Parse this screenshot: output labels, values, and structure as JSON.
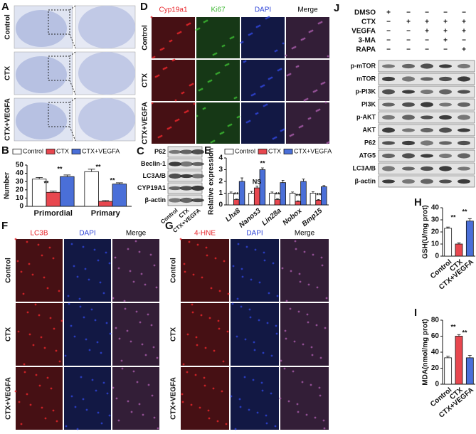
{
  "panels": {
    "A": {
      "label": "A",
      "rows": [
        "Control",
        "CTX",
        "CTX+VEGFA"
      ]
    },
    "C": {
      "label": "C",
      "bands": [
        "P62",
        "Beclin-1",
        "LC3A/B",
        "CYP19A1",
        "β-actin"
      ],
      "lanes": [
        "Control",
        "CTX",
        "CTX+VEGFA"
      ]
    },
    "D": {
      "label": "D",
      "columns": [
        {
          "name": "Cyp19a1",
          "color": "#e8262b"
        },
        {
          "name": "Ki67",
          "color": "#3cb832"
        },
        {
          "name": "DAPI",
          "color": "#2f45d8"
        },
        {
          "name": "Merge",
          "color": "#000000"
        }
      ],
      "rows": [
        "Control",
        "CTX",
        "CTX+VEGFA"
      ]
    },
    "F": {
      "label": "F",
      "columns": [
        {
          "name": "LC3B",
          "color": "#e8262b"
        },
        {
          "name": "DAPI",
          "color": "#2f45d8"
        },
        {
          "name": "Merge",
          "color": "#000000"
        }
      ],
      "rows": [
        "Control",
        "CTX",
        "CTX+VEGFA"
      ]
    },
    "G": {
      "label": "G",
      "columns": [
        {
          "name": "4-HNE",
          "color": "#e8262b"
        },
        {
          "name": "DAPI",
          "color": "#2f45d8"
        },
        {
          "name": "Merge",
          "color": "#000000"
        }
      ],
      "rows": [
        "Control",
        "CTX",
        "CTX+VEGFA"
      ]
    },
    "J": {
      "label": "J",
      "treatments": [
        {
          "name": "DMSO",
          "signs": [
            "+",
            "−",
            "−",
            "−",
            "−"
          ]
        },
        {
          "name": "CTX",
          "signs": [
            "−",
            "+",
            "+",
            "+",
            "+"
          ]
        },
        {
          "name": "VEGFA",
          "signs": [
            "−",
            "−",
            "+",
            "+",
            "+"
          ]
        },
        {
          "name": "3-MA",
          "signs": [
            "−",
            "−",
            "−",
            "+",
            "−"
          ]
        },
        {
          "name": "RAPA",
          "signs": [
            "−",
            "−",
            "−",
            "−",
            "+"
          ]
        }
      ],
      "bands": [
        "p-mTOR",
        "mTOR",
        "p-PI3K",
        "PI3K",
        "p-AKT",
        "AKT",
        "P62",
        "ATG5",
        "LC3A/B",
        "β-actin"
      ]
    }
  },
  "chart_data": [
    {
      "panel_label": "B",
      "type": "bar",
      "ylabel": "Number",
      "categories": [
        "Primordial",
        "Primary"
      ],
      "series": [
        {
          "name": "Control",
          "color": "#ffffff",
          "values": [
            33,
            42
          ],
          "errors": [
            2,
            3
          ]
        },
        {
          "name": "CTX",
          "color": "#e8474f",
          "values": [
            17,
            6
          ],
          "errors": [
            1.5,
            1
          ]
        },
        {
          "name": "CTX+VEGFA",
          "color": "#4a6fd8",
          "values": [
            36,
            27
          ],
          "errors": [
            2,
            1.5
          ]
        }
      ],
      "ylim": [
        0,
        50
      ],
      "yticks": [
        0,
        10,
        20,
        30,
        40,
        50
      ],
      "annotations": [
        "**",
        "**",
        "**",
        "**"
      ]
    },
    {
      "panel_label": "E",
      "type": "bar",
      "ylabel": "Relative expression",
      "categories": [
        "Lhx8",
        "Nanos3",
        "Lin28a",
        "Nobox",
        "Bmp15"
      ],
      "series": [
        {
          "name": "Control",
          "color": "#ffffff",
          "values": [
            1,
            1,
            1,
            1,
            1
          ],
          "errors": [
            0.1,
            0.15,
            0.1,
            0.1,
            0.12
          ]
        },
        {
          "name": "CTX",
          "color": "#e8474f",
          "values": [
            0.45,
            1.45,
            0.45,
            0.3,
            0.4
          ],
          "errors": [
            0.05,
            0.15,
            0.08,
            0.05,
            0.06
          ]
        },
        {
          "name": "CTX+VEGFA",
          "color": "#4a6fd8",
          "values": [
            2.0,
            3.0,
            1.9,
            2.0,
            1.55
          ],
          "errors": [
            0.3,
            0.15,
            0.2,
            0.2,
            0.1
          ]
        }
      ],
      "ylim": [
        0,
        4
      ],
      "yticks": [
        0,
        1,
        2,
        3,
        4
      ],
      "annotations": [
        "**",
        "NS",
        "**",
        "**",
        "**",
        "**"
      ]
    },
    {
      "panel_label": "H",
      "type": "bar",
      "ylabel": "GSH(U/mg prot)",
      "categories": [
        "Control",
        "CTX",
        "CTX+VEGFA"
      ],
      "series": [
        {
          "colors": [
            "#ffffff",
            "#e8474f",
            "#4a6fd8"
          ],
          "values": [
            23,
            10,
            29
          ],
          "errors": [
            1,
            1,
            2
          ]
        }
      ],
      "ylim": [
        0,
        40
      ],
      "yticks": [
        0,
        10,
        20,
        30,
        40
      ],
      "annotations": [
        "**",
        "**"
      ]
    },
    {
      "panel_label": "I",
      "type": "bar",
      "ylabel": "MDA(nmol/mg prot)",
      "categories": [
        "Control",
        "CTX",
        "CTX+VEGFA"
      ],
      "series": [
        {
          "colors": [
            "#ffffff",
            "#e8474f",
            "#4a6fd8"
          ],
          "values": [
            33,
            60,
            33
          ],
          "errors": [
            2,
            2,
            3
          ]
        }
      ],
      "ylim": [
        0,
        80
      ],
      "yticks": [
        0,
        20,
        40,
        60,
        80
      ],
      "annotations": [
        "**",
        "**"
      ]
    }
  ]
}
